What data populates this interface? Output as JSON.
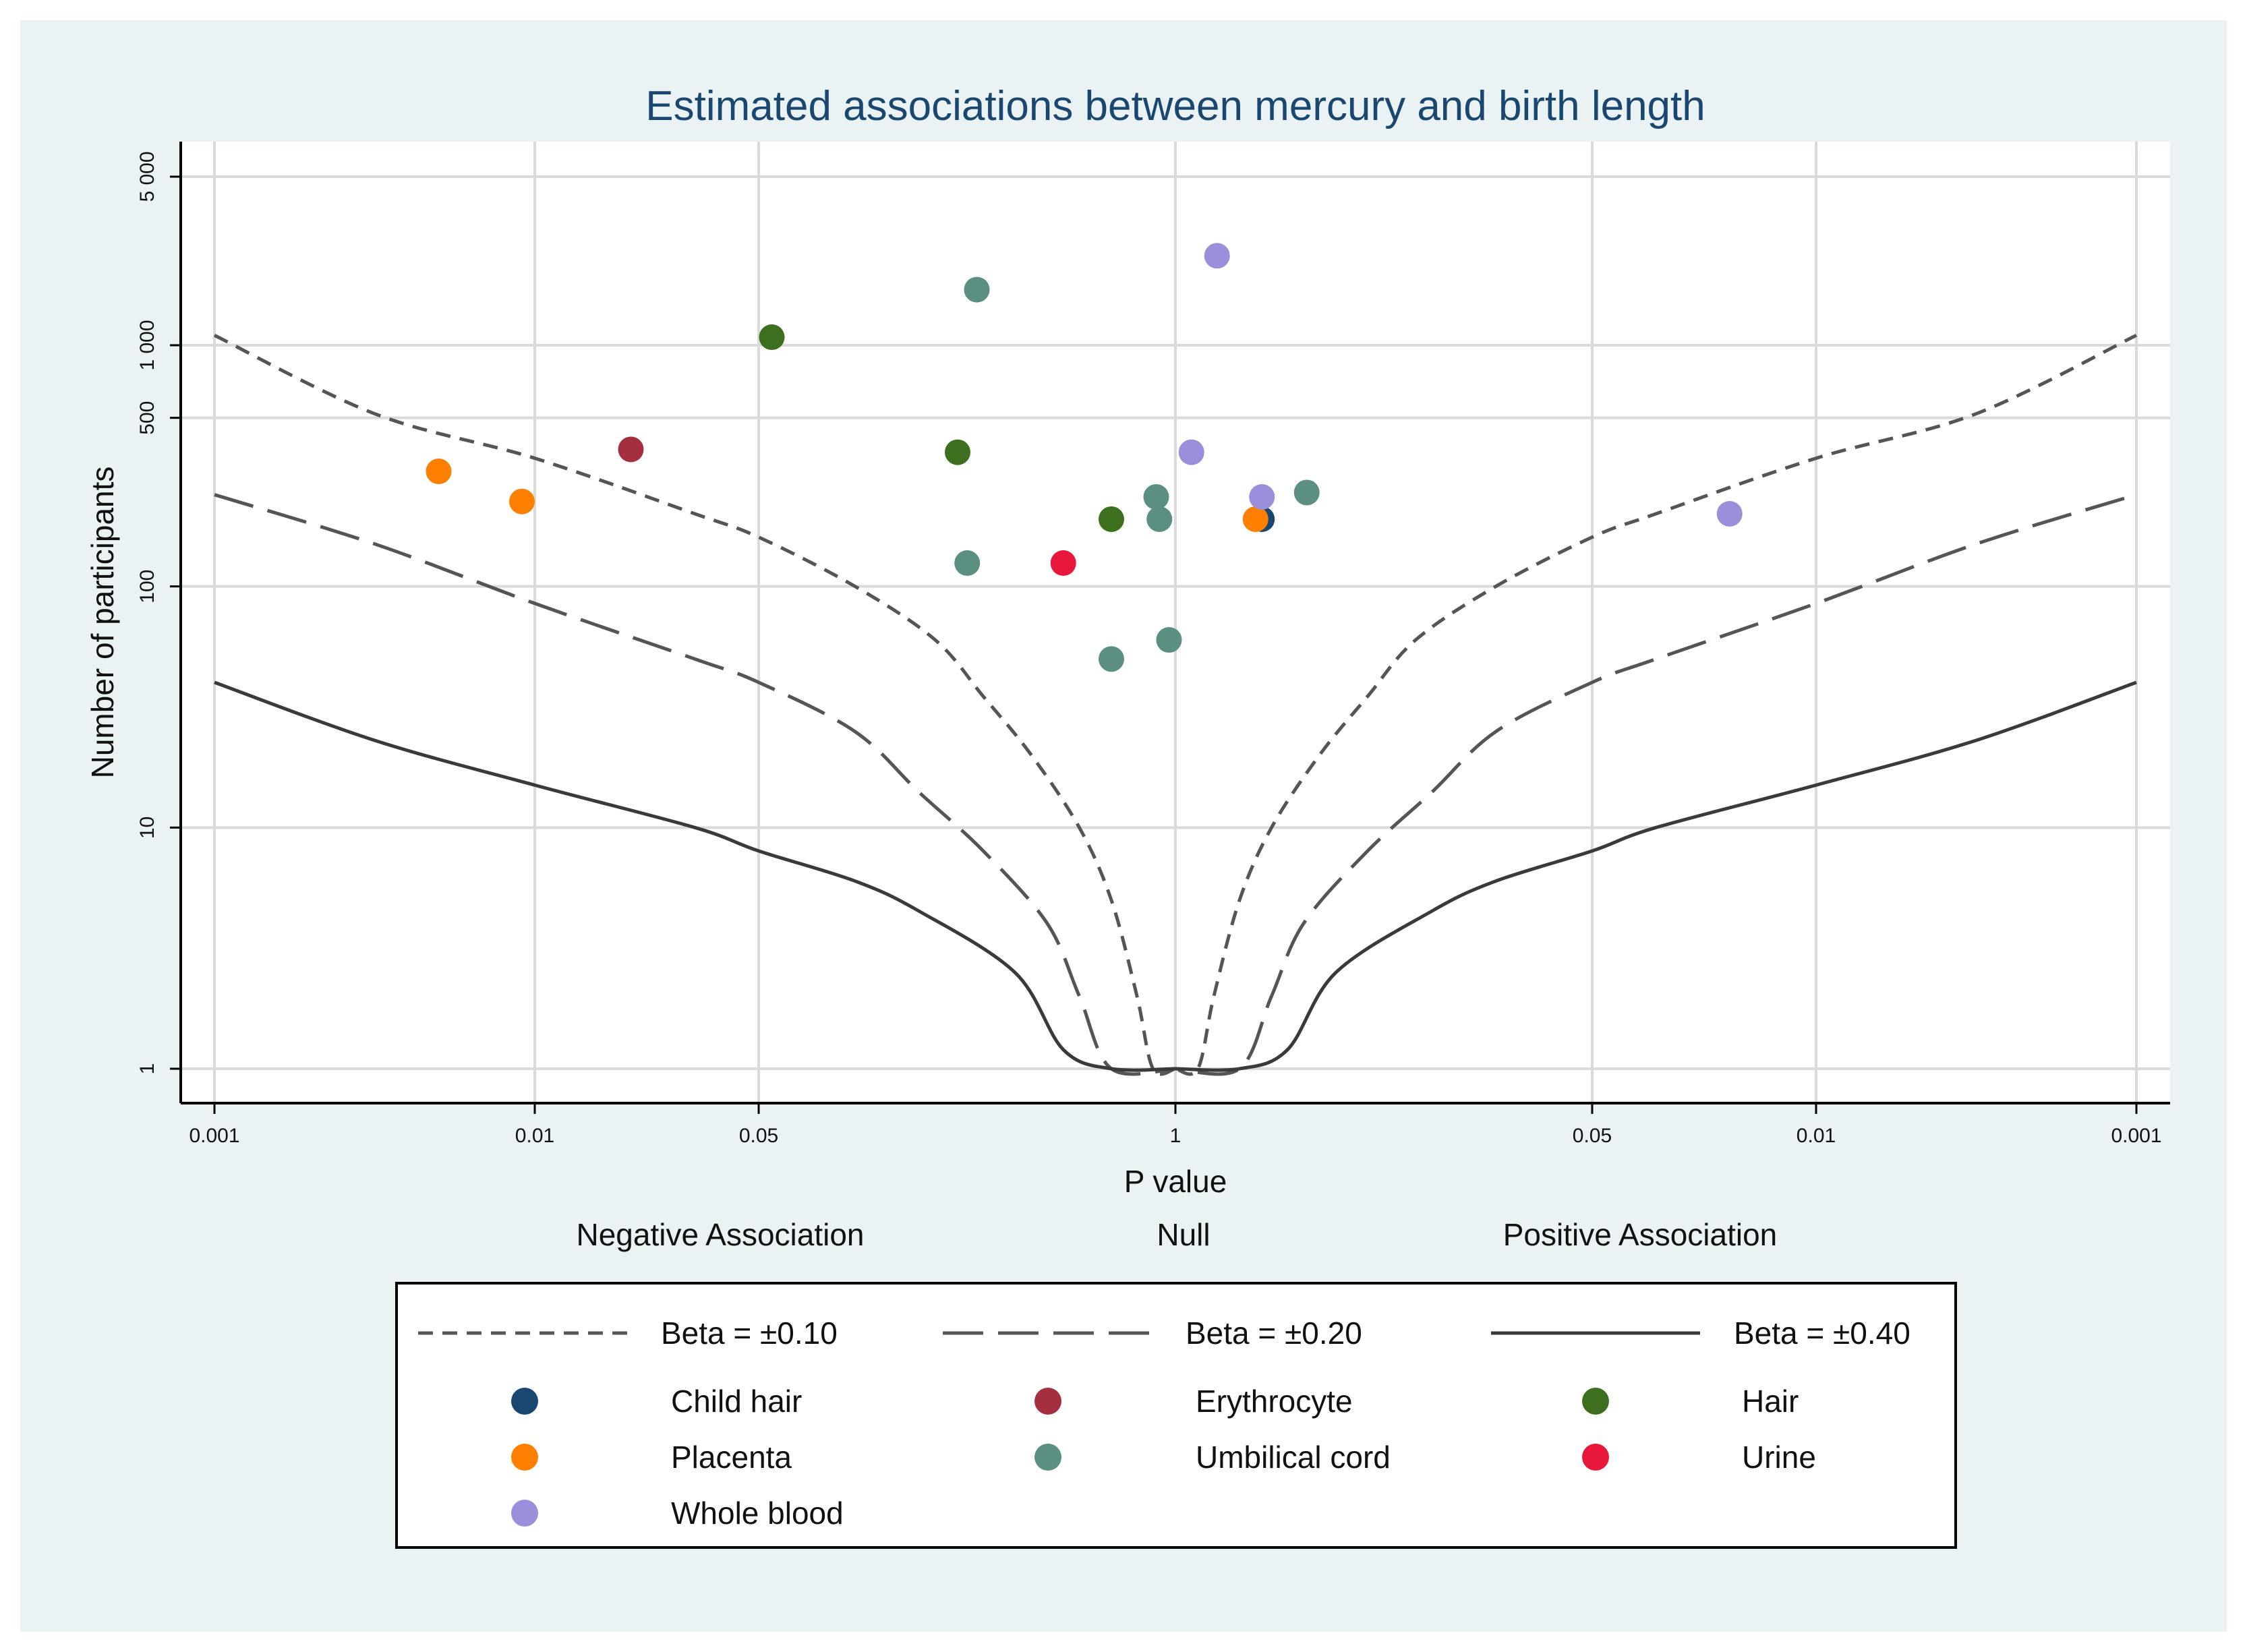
{
  "chart_data": {
    "type": "scatter",
    "title": "Estimated associations between mercury and birth length",
    "xlabel": "P value",
    "ylabel": "Number of participants",
    "x_scale": "signed log10 p-value (negative side left, positive side right, p=1 at centre)",
    "x_range": [
      -3,
      3
    ],
    "y_scale": "log10",
    "y_range": [
      1,
      5000
    ],
    "x_ticks": [
      {
        "x": -3,
        "label": "0.001"
      },
      {
        "x": -2,
        "label": "0.01"
      },
      {
        "x": -1.301,
        "label": "0.05"
      },
      {
        "x": 0,
        "label": "1"
      },
      {
        "x": 1.301,
        "label": "0.05"
      },
      {
        "x": 2,
        "label": "0.01"
      },
      {
        "x": 3,
        "label": "0.001"
      }
    ],
    "y_ticks": [
      {
        "y": 1,
        "label": "1"
      },
      {
        "y": 10,
        "label": "10"
      },
      {
        "y": 100,
        "label": "100"
      },
      {
        "y": 500,
        "label": "500"
      },
      {
        "y": 1000,
        "label": "1 000"
      },
      {
        "y": 5000,
        "label": "5 000"
      }
    ],
    "region_labels": {
      "negative": "Negative Association",
      "null": "Null",
      "positive": "Positive Association"
    },
    "grid": true,
    "legend_position": "bottom",
    "reference_curves": [
      {
        "name": "Beta = ±0.10",
        "beta": 0.1,
        "style": "short-dash",
        "points": [
          [
            0.0,
            1
          ],
          [
            0.07,
            1
          ],
          [
            0.12,
            2
          ],
          [
            0.2,
            5
          ],
          [
            0.3,
            10
          ],
          [
            0.45,
            20
          ],
          [
            0.6,
            35
          ],
          [
            0.75,
            60
          ],
          [
            1.0,
            100
          ],
          [
            1.301,
            160
          ],
          [
            1.5,
            200
          ],
          [
            2.0,
            340
          ],
          [
            2.5,
            520
          ],
          [
            3.0,
            1100
          ]
        ]
      },
      {
        "name": "Beta = ±0.20",
        "beta": 0.2,
        "style": "long-dash",
        "points": [
          [
            0.0,
            1
          ],
          [
            0.2,
            1
          ],
          [
            0.3,
            2
          ],
          [
            0.4,
            4
          ],
          [
            0.6,
            8
          ],
          [
            0.8,
            14
          ],
          [
            1.0,
            25
          ],
          [
            1.301,
            40
          ],
          [
            1.5,
            50
          ],
          [
            2.0,
            85
          ],
          [
            2.5,
            150
          ],
          [
            3.0,
            240
          ]
        ]
      },
      {
        "name": "Beta = ±0.40",
        "beta": 0.4,
        "style": "solid",
        "points": [
          [
            0.0,
            1
          ],
          [
            0.2,
            1
          ],
          [
            0.35,
            1.2
          ],
          [
            0.5,
            2.5
          ],
          [
            0.8,
            4.5
          ],
          [
            1.0,
            6
          ],
          [
            1.301,
            8
          ],
          [
            1.5,
            10
          ],
          [
            2.0,
            15
          ],
          [
            2.5,
            23
          ],
          [
            3.0,
            40
          ]
        ]
      }
    ],
    "series": [
      {
        "name": "Child hair",
        "color": "#1a476f",
        "points": [
          {
            "x": 0.27,
            "y": 190
          }
        ]
      },
      {
        "name": "Erythrocyte",
        "color": "#a4303f",
        "points": [
          {
            "x": -1.7,
            "y": 370
          }
        ]
      },
      {
        "name": "Hair",
        "color": "#3e6f1e",
        "points": [
          {
            "x": -1.26,
            "y": 1080
          },
          {
            "x": -0.68,
            "y": 360
          },
          {
            "x": -0.2,
            "y": 190
          }
        ]
      },
      {
        "name": "Placenta",
        "color": "#ff8000",
        "points": [
          {
            "x": -2.3,
            "y": 300
          },
          {
            "x": -2.04,
            "y": 225
          },
          {
            "x": 0.25,
            "y": 190
          }
        ]
      },
      {
        "name": "Umbilical cord",
        "color": "#5a8f82",
        "points": [
          {
            "x": -0.62,
            "y": 1700
          },
          {
            "x": -0.06,
            "y": 235
          },
          {
            "x": -0.05,
            "y": 190
          },
          {
            "x": 0.41,
            "y": 245
          },
          {
            "x": -0.65,
            "y": 125
          },
          {
            "x": -0.2,
            "y": 50
          },
          {
            "x": -0.02,
            "y": 60
          }
        ]
      },
      {
        "name": "Urine",
        "color": "#e8173c",
        "points": [
          {
            "x": -0.35,
            "y": 125
          }
        ]
      },
      {
        "name": "Whole blood",
        "color": "#9a8fdb",
        "points": [
          {
            "x": 0.13,
            "y": 2350
          },
          {
            "x": 0.05,
            "y": 360
          },
          {
            "x": 0.27,
            "y": 235
          },
          {
            "x": 1.73,
            "y": 200
          }
        ]
      }
    ]
  }
}
